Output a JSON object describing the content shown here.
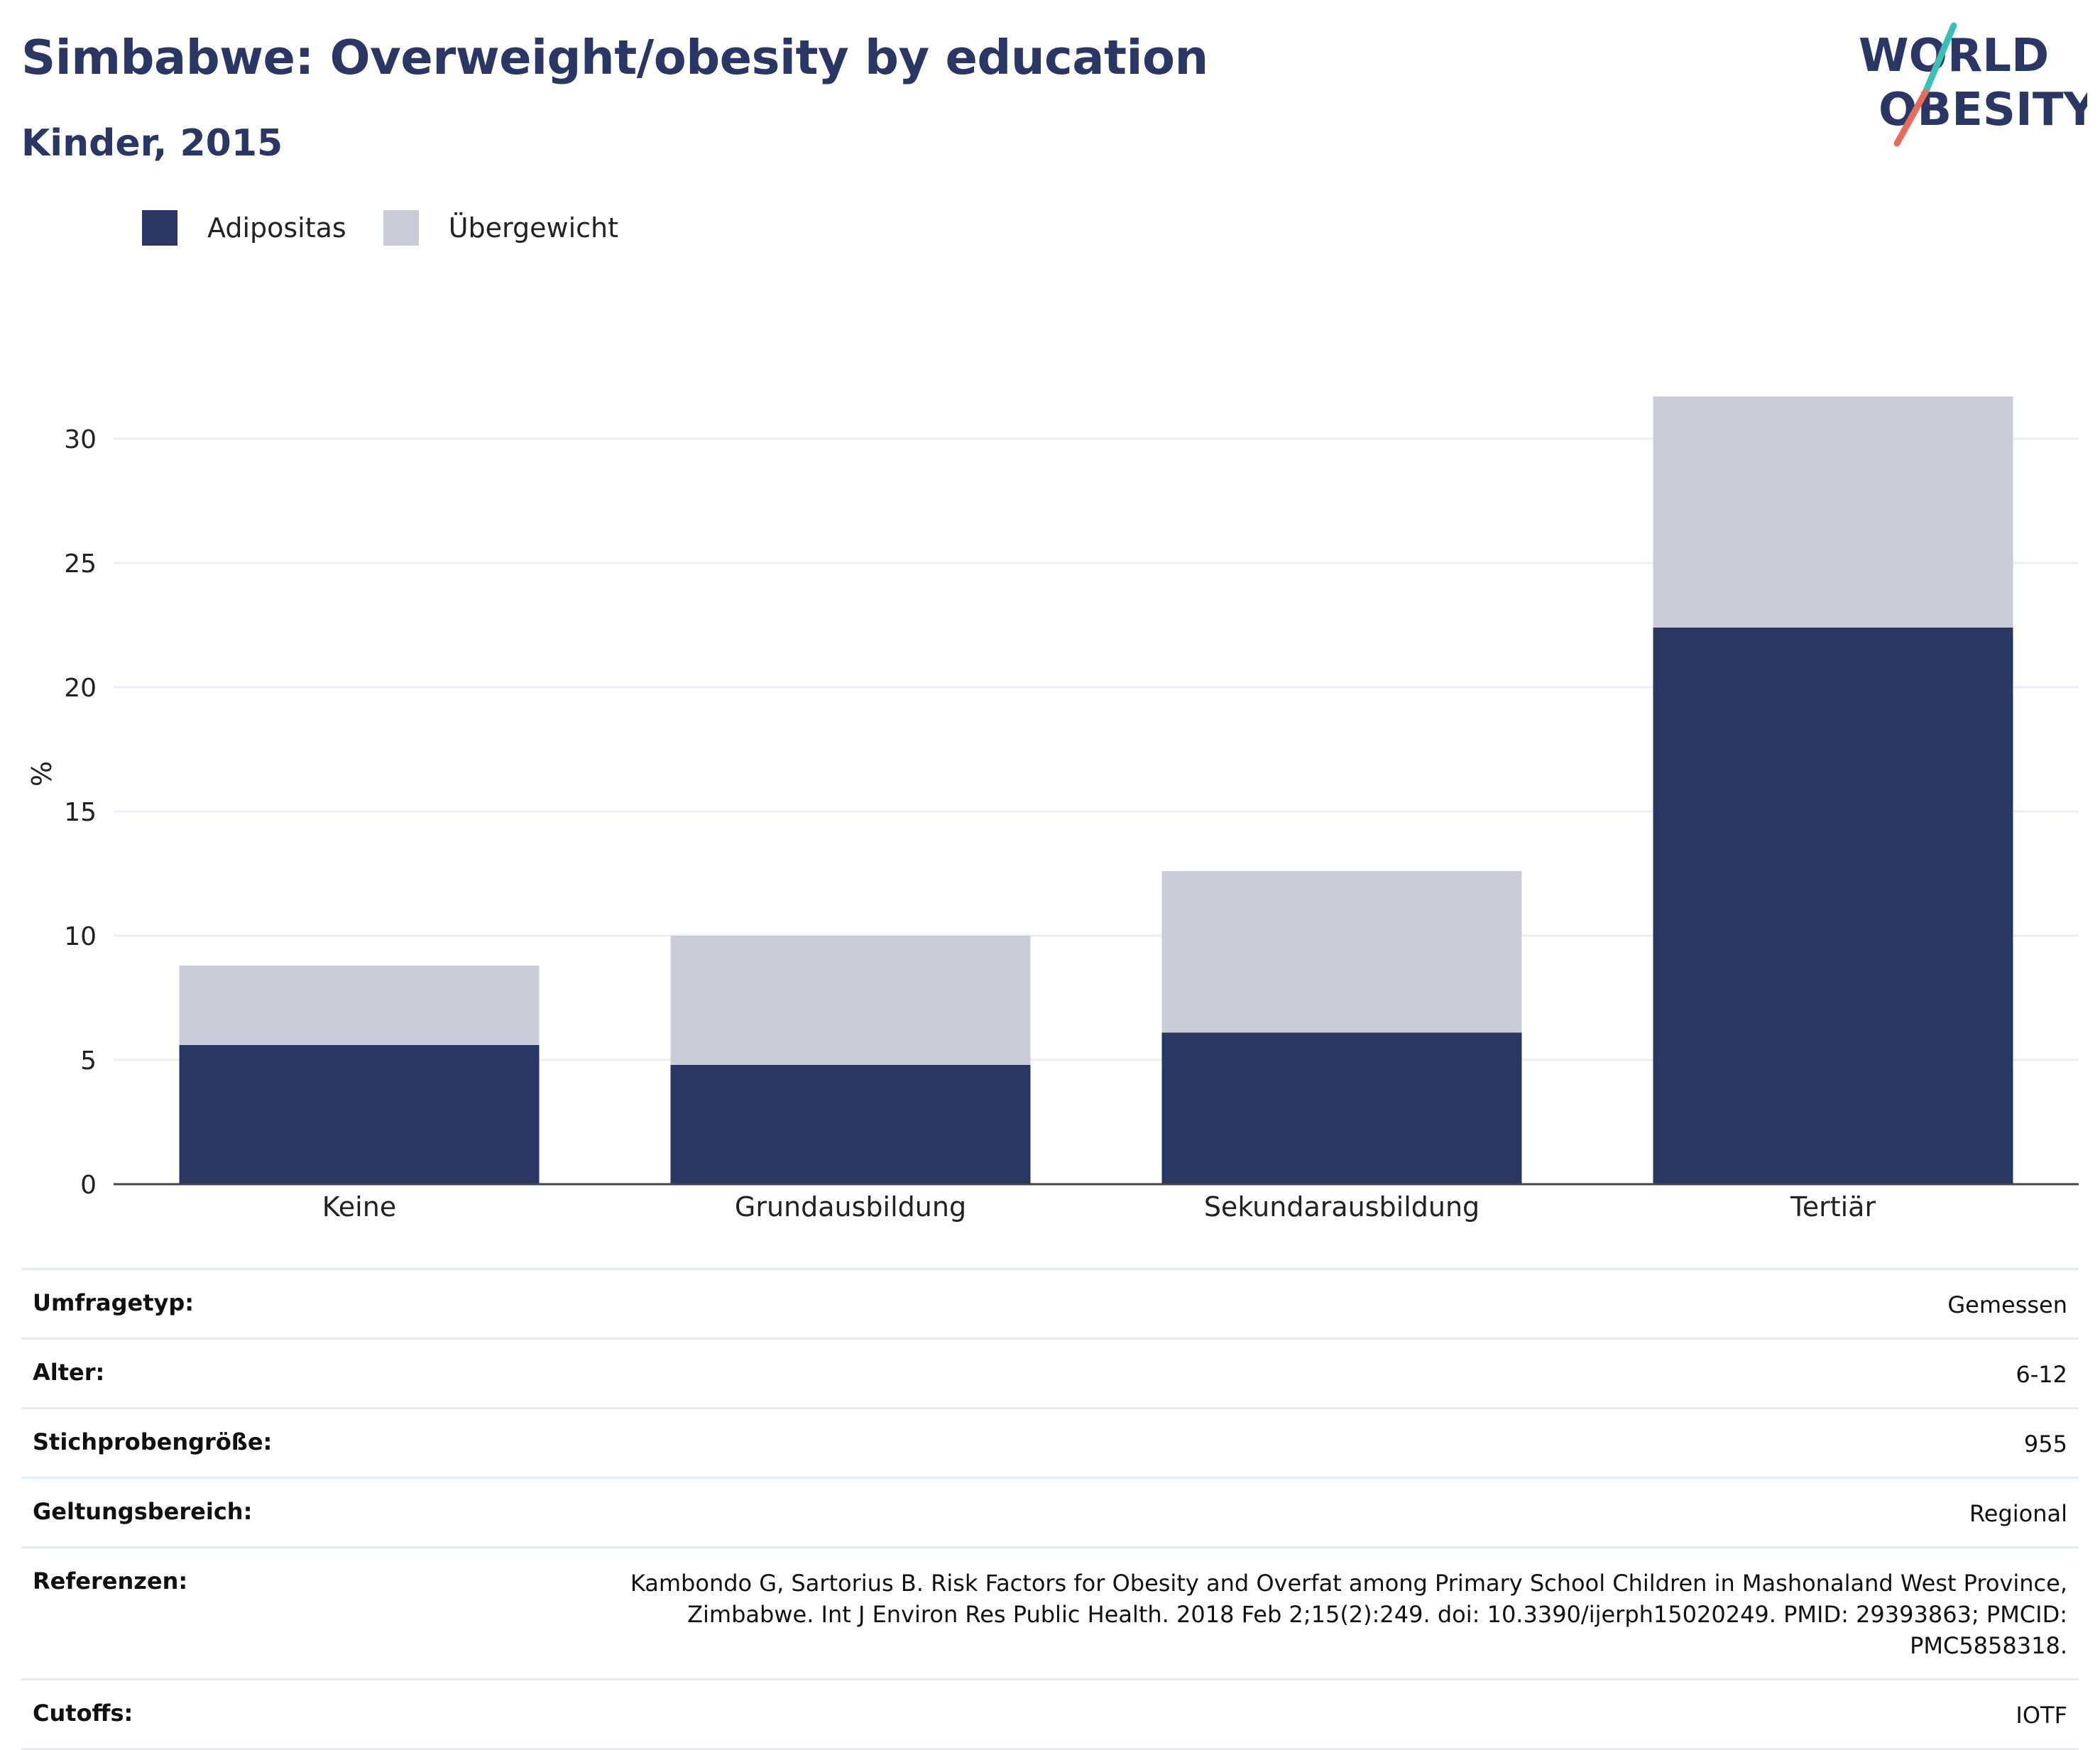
{
  "header": {
    "title": "Simbabwe: Overweight/obesity by education",
    "subtitle": "Kinder, 2015"
  },
  "logo": {
    "line1": "WORLD",
    "line2": "OBESITY",
    "colors": {
      "text": "#2a3663",
      "slash_top": "#3bbfb8",
      "slash_bottom": "#e86b5e"
    }
  },
  "legend": [
    {
      "label": "Adipositas",
      "color": "#2a3663"
    },
    {
      "label": "Übergewicht",
      "color": "#cacdd8"
    }
  ],
  "chart_data": {
    "type": "bar",
    "stacked": true,
    "categories": [
      "Keine",
      "Grundausbildung",
      "Sekundarausbildung",
      "Tertiär"
    ],
    "series": [
      {
        "name": "Adipositas",
        "values": [
          5.6,
          4.8,
          6.1,
          22.4
        ],
        "color": "#2a3663"
      },
      {
        "name": "Übergewicht",
        "values": [
          3.2,
          5.2,
          6.5,
          9.3
        ],
        "color": "#cacdd8"
      }
    ],
    "ylabel": "%",
    "ylim": [
      0,
      32
    ],
    "yticks": [
      0,
      5,
      10,
      15,
      20,
      25,
      30
    ],
    "grid": true,
    "legend_position": "top-left"
  },
  "meta": [
    {
      "label": "Umfragetyp:",
      "value": "Gemessen"
    },
    {
      "label": "Alter:",
      "value": "6-12"
    },
    {
      "label": "Stichprobengröße:",
      "value": "955"
    },
    {
      "label": "Geltungsbereich:",
      "value": "Regional"
    },
    {
      "label": "Referenzen:",
      "value": "Kambondo G, Sartorius B. Risk Factors for Obesity and Overfat among Primary School Children in Mashonaland West Province, Zimbabwe. Int J Environ Res Public Health. 2018 Feb 2;15(2):249. doi: 10.3390/ijerph15020249. PMID: 29393863; PMCID: PMC5858318."
    },
    {
      "label": "Cutoffs:",
      "value": "IOTF"
    }
  ]
}
